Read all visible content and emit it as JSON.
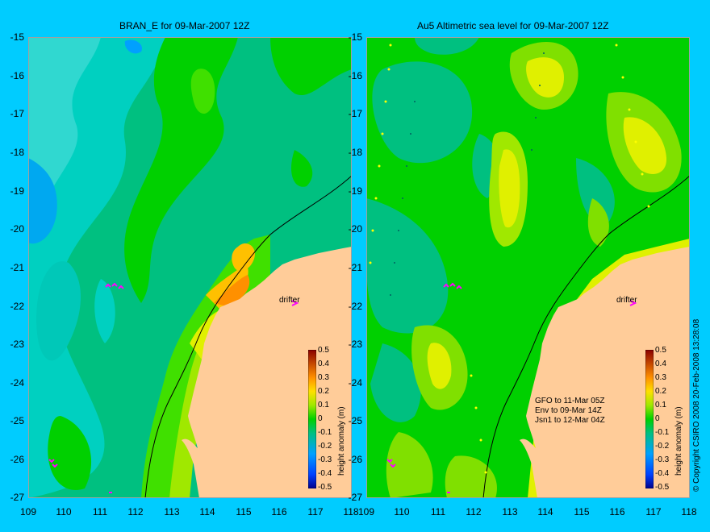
{
  "panels": [
    {
      "title": "BRAN_E for 09-Mar-2007 12Z",
      "drifter_label": "drifter"
    },
    {
      "title": "Au5 Altimetric sea level  for 09-Mar-2007 12Z",
      "drifter_label": "drifter",
      "satellite_info": [
        "GFO to 11-Mar 05Z",
        "Env to 09-Mar 14Z",
        "Jsn1 to 12-Mar 04Z"
      ]
    }
  ],
  "axes": {
    "y_ticks": [
      "-15",
      "-16",
      "-17",
      "-18",
      "-19",
      "-20",
      "-21",
      "-22",
      "-23",
      "-24",
      "-25",
      "-26",
      "-27"
    ],
    "x_ticks": [
      "109",
      "110",
      "111",
      "112",
      "113",
      "114",
      "115",
      "116",
      "117",
      "118"
    ],
    "lat_range": [
      -27,
      -15
    ],
    "lon_range": [
      109,
      118
    ]
  },
  "colorbar": {
    "label": "height anomaly (m)",
    "ticks": [
      "0.5",
      "0.4",
      "0.3",
      "0.2",
      "0.1",
      "0",
      "-0.1",
      "-0.2",
      "-0.3",
      "-0.4",
      "-0.5"
    ],
    "colors": [
      "#00008b",
      "#0040ff",
      "#00a0ff",
      "#00d0c0",
      "#00c080",
      "#00d000",
      "#80e000",
      "#e0f000",
      "#ffc000",
      "#ff7000",
      "#d02000",
      "#8b0000"
    ]
  },
  "colors": {
    "background": "#00ccff",
    "land": "#ffcc99",
    "drifter": "#ff00ff"
  },
  "copyright": "© Copyright CSIRO 2008    20-Feb-2008 13:28:08"
}
